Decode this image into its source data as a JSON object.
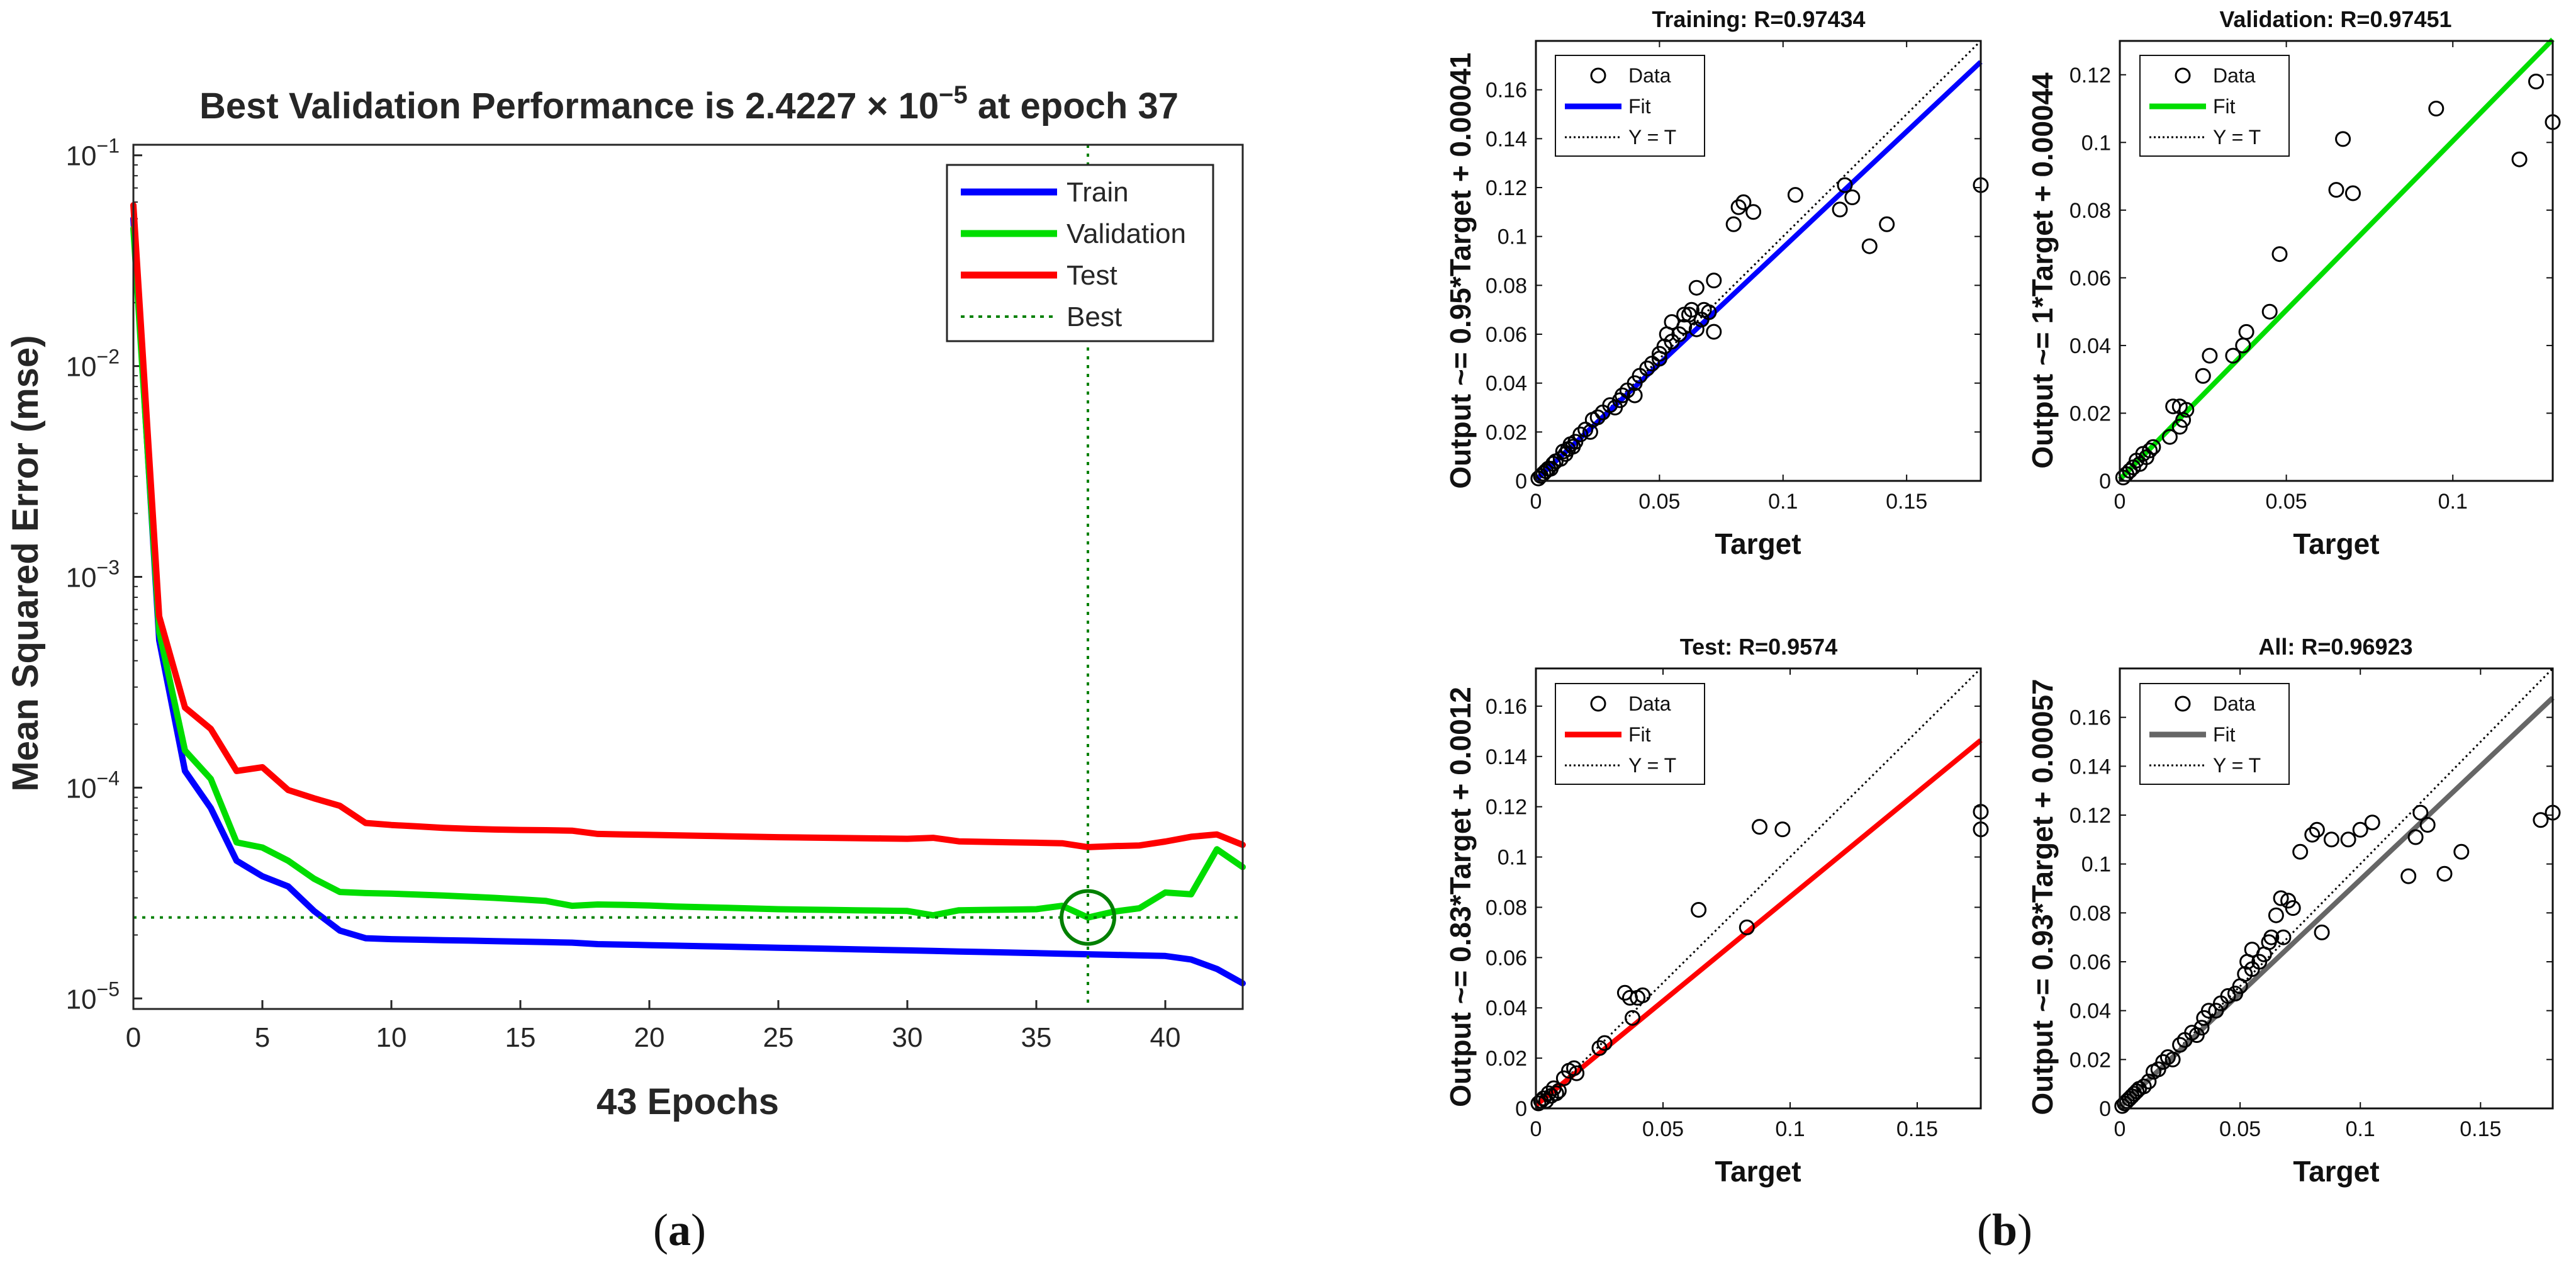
{
  "panel_labels": {
    "a_open": "(",
    "a_letter": "a",
    "a_close": ")",
    "b_open": "(",
    "b_letter": "b",
    "b_close": ")"
  },
  "colors": {
    "train": "#0000ff",
    "validation": "#00dd00",
    "test": "#ff0000",
    "best": "#008000",
    "all": "#666666",
    "data": "#000000"
  },
  "chart_data": [
    {
      "id": "performance",
      "type": "line",
      "title_prefix": "Best Validation Performance is 2.4227 × 10",
      "title_exp": "−5",
      "title_suffix": " at epoch 37",
      "xlabel": "43 Epochs",
      "ylabel": "Mean Squared Error  (mse)",
      "xlim": [
        0,
        43
      ],
      "ylim_log10": [
        -5.05,
        -0.95
      ],
      "xticks": [
        0,
        5,
        10,
        15,
        20,
        25,
        30,
        35,
        40
      ],
      "yticks": [
        {
          "base": "10",
          "exp": "−5",
          "log": -5
        },
        {
          "base": "10",
          "exp": "−4",
          "log": -4
        },
        {
          "base": "10",
          "exp": "−3",
          "log": -3
        },
        {
          "base": "10",
          "exp": "−2",
          "log": -2
        },
        {
          "base": "10",
          "exp": "−1",
          "log": -1
        }
      ],
      "legend": [
        "Train",
        "Validation",
        "Test",
        "Best"
      ],
      "best": {
        "epoch": 37,
        "value": 2.4227e-05
      },
      "series": [
        {
          "name": "Train",
          "values": [
            0.05,
            0.0005,
            0.00012,
            8e-05,
            4.5e-05,
            3.8e-05,
            3.4e-05,
            2.6e-05,
            2.1e-05,
            1.93e-05,
            1.91e-05,
            1.9e-05,
            1.89e-05,
            1.88e-05,
            1.87e-05,
            1.86e-05,
            1.85e-05,
            1.84e-05,
            1.81e-05,
            1.8e-05,
            1.79e-05,
            1.78e-05,
            1.77e-05,
            1.76e-05,
            1.75e-05,
            1.74e-05,
            1.73e-05,
            1.72e-05,
            1.71e-05,
            1.7e-05,
            1.69e-05,
            1.68e-05,
            1.67e-05,
            1.66e-05,
            1.65e-05,
            1.64e-05,
            1.63e-05,
            1.62e-05,
            1.61e-05,
            1.6e-05,
            1.59e-05,
            1.53e-05,
            1.38e-05,
            1.18e-05
          ]
        },
        {
          "name": "Validation",
          "values": [
            0.045,
            0.00055,
            0.00015,
            0.00011,
            5.5e-05,
            5.2e-05,
            4.5e-05,
            3.7e-05,
            3.2e-05,
            3.16e-05,
            3.14e-05,
            3.11e-05,
            3.08e-05,
            3.04e-05,
            3e-05,
            2.95e-05,
            2.9e-05,
            2.75e-05,
            2.79e-05,
            2.78e-05,
            2.76e-05,
            2.73e-05,
            2.71e-05,
            2.69e-05,
            2.67e-05,
            2.65e-05,
            2.64e-05,
            2.63e-05,
            2.62e-05,
            2.61e-05,
            2.6e-05,
            2.48e-05,
            2.62e-05,
            2.63e-05,
            2.64e-05,
            2.65e-05,
            2.75e-05,
            2.42e-05,
            2.58e-05,
            2.68e-05,
            3.18e-05,
            3.12e-05,
            5.1e-05,
            4.2e-05
          ]
        },
        {
          "name": "Test",
          "values": [
            0.058,
            0.00065,
            0.00024,
            0.00019,
            0.00012,
            0.000125,
            9.75e-05,
            8.9e-05,
            8.2e-05,
            6.8e-05,
            6.65e-05,
            6.55e-05,
            6.45e-05,
            6.38e-05,
            6.33e-05,
            6.3e-05,
            6.28e-05,
            6.25e-05,
            6.03e-05,
            6e-05,
            5.97e-05,
            5.94e-05,
            5.91e-05,
            5.88e-05,
            5.85e-05,
            5.82e-05,
            5.8e-05,
            5.78e-05,
            5.76e-05,
            5.74e-05,
            5.72e-05,
            5.78e-05,
            5.56e-05,
            5.53e-05,
            5.5e-05,
            5.48e-05,
            5.45e-05,
            5.22e-05,
            5.28e-05,
            5.32e-05,
            5.55e-05,
            5.85e-05,
            6e-05,
            5.35e-05
          ]
        }
      ]
    },
    {
      "id": "training",
      "type": "scatter",
      "title": "Training: R=0.97434",
      "ylabel": "Output ~= 0.95*Target + 0.00041",
      "xlabel": "Target",
      "fit": {
        "slope": 0.95,
        "intercept": 0.00041,
        "color_key": "train"
      },
      "xlim": [
        0,
        0.18
      ],
      "ylim": [
        0,
        0.18
      ],
      "xticks": [
        0,
        0.05,
        0.1,
        0.15
      ],
      "xtick_labels": [
        "0",
        "0.05",
        "0.1",
        "0.15"
      ],
      "yticks": [
        0,
        0.02,
        0.04,
        0.06,
        0.08,
        0.1,
        0.12,
        0.14,
        0.16
      ],
      "ytick_labels": [
        "0",
        "0.02",
        "0.04",
        "0.06",
        "0.08",
        "0.1",
        "0.12",
        "0.14",
        "0.16"
      ],
      "legend": [
        "Data",
        "Fit",
        "Y = T"
      ],
      "points": [
        [
          0.001,
          0.001
        ],
        [
          0.002,
          0.002
        ],
        [
          0.003,
          0.003
        ],
        [
          0.004,
          0.004
        ],
        [
          0.005,
          0.005
        ],
        [
          0.006,
          0.005
        ],
        [
          0.007,
          0.007
        ],
        [
          0.008,
          0.008
        ],
        [
          0.01,
          0.009
        ],
        [
          0.011,
          0.012
        ],
        [
          0.012,
          0.011
        ],
        [
          0.013,
          0.013
        ],
        [
          0.014,
          0.015
        ],
        [
          0.015,
          0.014
        ],
        [
          0.016,
          0.016
        ],
        [
          0.018,
          0.019
        ],
        [
          0.02,
          0.021
        ],
        [
          0.022,
          0.02
        ],
        [
          0.023,
          0.025
        ],
        [
          0.025,
          0.026
        ],
        [
          0.027,
          0.028
        ],
        [
          0.03,
          0.031
        ],
        [
          0.032,
          0.03
        ],
        [
          0.034,
          0.033
        ],
        [
          0.035,
          0.035
        ],
        [
          0.037,
          0.037
        ],
        [
          0.04,
          0.04
        ],
        [
          0.04,
          0.035
        ],
        [
          0.042,
          0.043
        ],
        [
          0.045,
          0.046
        ],
        [
          0.047,
          0.048
        ],
        [
          0.05,
          0.05
        ],
        [
          0.05,
          0.052
        ],
        [
          0.052,
          0.055
        ],
        [
          0.053,
          0.06
        ],
        [
          0.055,
          0.057
        ],
        [
          0.055,
          0.065
        ],
        [
          0.058,
          0.06
        ],
        [
          0.06,
          0.063
        ],
        [
          0.06,
          0.068
        ],
        [
          0.062,
          0.068
        ],
        [
          0.063,
          0.07
        ],
        [
          0.065,
          0.079
        ],
        [
          0.065,
          0.062
        ],
        [
          0.067,
          0.066
        ],
        [
          0.068,
          0.07
        ],
        [
          0.07,
          0.069
        ],
        [
          0.072,
          0.082
        ],
        [
          0.072,
          0.061
        ],
        [
          0.08,
          0.105
        ],
        [
          0.082,
          0.112
        ],
        [
          0.084,
          0.114
        ],
        [
          0.088,
          0.11
        ],
        [
          0.105,
          0.117
        ],
        [
          0.123,
          0.111
        ],
        [
          0.125,
          0.121
        ],
        [
          0.128,
          0.116
        ],
        [
          0.135,
          0.096
        ],
        [
          0.142,
          0.105
        ],
        [
          0.18,
          0.121
        ]
      ]
    },
    {
      "id": "validation",
      "type": "scatter",
      "title": "Validation: R=0.97451",
      "ylabel": "Output ~= 1*Target + 0.00044",
      "xlabel": "Target",
      "fit": {
        "slope": 1.0,
        "intercept": 0.00044,
        "color_key": "validation"
      },
      "xlim": [
        0,
        0.13
      ],
      "ylim": [
        0,
        0.13
      ],
      "xticks": [
        0,
        0.05,
        0.1
      ],
      "xtick_labels": [
        "0",
        "0.05",
        "0.1"
      ],
      "yticks": [
        0,
        0.02,
        0.04,
        0.06,
        0.08,
        0.1,
        0.12
      ],
      "ytick_labels": [
        "0",
        "0.02",
        "0.04",
        "0.06",
        "0.08",
        "0.1",
        "0.12"
      ],
      "legend": [
        "Data",
        "Fit",
        "Y = T"
      ],
      "points": [
        [
          0.001,
          0.001
        ],
        [
          0.002,
          0.002
        ],
        [
          0.003,
          0.003
        ],
        [
          0.004,
          0.004
        ],
        [
          0.005,
          0.006
        ],
        [
          0.006,
          0.005
        ],
        [
          0.007,
          0.008
        ],
        [
          0.008,
          0.007
        ],
        [
          0.009,
          0.009
        ],
        [
          0.01,
          0.01
        ],
        [
          0.015,
          0.013
        ],
        [
          0.016,
          0.022
        ],
        [
          0.018,
          0.022
        ],
        [
          0.018,
          0.016
        ],
        [
          0.019,
          0.018
        ],
        [
          0.02,
          0.021
        ],
        [
          0.025,
          0.031
        ],
        [
          0.027,
          0.037
        ],
        [
          0.034,
          0.037
        ],
        [
          0.037,
          0.04
        ],
        [
          0.038,
          0.044
        ],
        [
          0.045,
          0.05
        ],
        [
          0.048,
          0.067
        ],
        [
          0.065,
          0.086
        ],
        [
          0.067,
          0.101
        ],
        [
          0.07,
          0.085
        ],
        [
          0.095,
          0.11
        ],
        [
          0.12,
          0.095
        ],
        [
          0.125,
          0.118
        ],
        [
          0.13,
          0.106
        ]
      ]
    },
    {
      "id": "test",
      "type": "scatter",
      "title": "Test: R=0.9574",
      "ylabel": "Output ~= 0.83*Target + 0.0012",
      "xlabel": "Target",
      "fit": {
        "slope": 0.83,
        "intercept": 0.0012,
        "color_key": "test"
      },
      "xlim": [
        0,
        0.175
      ],
      "ylim": [
        0,
        0.175
      ],
      "xticks": [
        0,
        0.05,
        0.1,
        0.15
      ],
      "xtick_labels": [
        "0",
        "0.05",
        "0.1",
        "0.15"
      ],
      "yticks": [
        0,
        0.02,
        0.04,
        0.06,
        0.08,
        0.1,
        0.12,
        0.14,
        0.16
      ],
      "ytick_labels": [
        "0",
        "0.02",
        "0.04",
        "0.06",
        "0.08",
        "0.1",
        "0.12",
        "0.14",
        "0.16"
      ],
      "legend": [
        "Data",
        "Fit",
        "Y = T"
      ],
      "points": [
        [
          0.001,
          0.002
        ],
        [
          0.002,
          0.003
        ],
        [
          0.003,
          0.004
        ],
        [
          0.004,
          0.003
        ],
        [
          0.005,
          0.006
        ],
        [
          0.006,
          0.005
        ],
        [
          0.007,
          0.008
        ],
        [
          0.008,
          0.006
        ],
        [
          0.009,
          0.007
        ],
        [
          0.011,
          0.012
        ],
        [
          0.013,
          0.015
        ],
        [
          0.015,
          0.016
        ],
        [
          0.016,
          0.014
        ],
        [
          0.025,
          0.024
        ],
        [
          0.027,
          0.026
        ],
        [
          0.035,
          0.046
        ],
        [
          0.037,
          0.044
        ],
        [
          0.038,
          0.036
        ],
        [
          0.04,
          0.044
        ],
        [
          0.042,
          0.045
        ],
        [
          0.064,
          0.079
        ],
        [
          0.083,
          0.072
        ],
        [
          0.088,
          0.112
        ],
        [
          0.097,
          0.111
        ],
        [
          0.175,
          0.118
        ],
        [
          0.175,
          0.111
        ]
      ]
    },
    {
      "id": "all",
      "type": "scatter",
      "title": "All: R=0.96923",
      "ylabel": "Output ~= 0.93*Target + 0.00057",
      "xlabel": "Target",
      "fit": {
        "slope": 0.93,
        "intercept": 0.00057,
        "color_key": "all"
      },
      "xlim": [
        0,
        0.18
      ],
      "ylim": [
        0,
        0.18
      ],
      "xticks": [
        0,
        0.05,
        0.1,
        0.15
      ],
      "xtick_labels": [
        "0",
        "0.05",
        "0.1",
        "0.15"
      ],
      "yticks": [
        0,
        0.02,
        0.04,
        0.06,
        0.08,
        0.1,
        0.12,
        0.14,
        0.16
      ],
      "ytick_labels": [
        "0",
        "0.02",
        "0.04",
        "0.06",
        "0.08",
        "0.1",
        "0.12",
        "0.14",
        "0.16"
      ],
      "legend": [
        "Data",
        "Fit",
        "Y = T"
      ],
      "points": [
        [
          0.001,
          0.001
        ],
        [
          0.002,
          0.002
        ],
        [
          0.003,
          0.003
        ],
        [
          0.004,
          0.004
        ],
        [
          0.005,
          0.005
        ],
        [
          0.006,
          0.006
        ],
        [
          0.007,
          0.007
        ],
        [
          0.008,
          0.008
        ],
        [
          0.01,
          0.009
        ],
        [
          0.012,
          0.011
        ],
        [
          0.014,
          0.015
        ],
        [
          0.016,
          0.016
        ],
        [
          0.018,
          0.019
        ],
        [
          0.02,
          0.021
        ],
        [
          0.022,
          0.02
        ],
        [
          0.025,
          0.026
        ],
        [
          0.027,
          0.028
        ],
        [
          0.03,
          0.031
        ],
        [
          0.032,
          0.03
        ],
        [
          0.034,
          0.033
        ],
        [
          0.035,
          0.037
        ],
        [
          0.037,
          0.04
        ],
        [
          0.04,
          0.04
        ],
        [
          0.042,
          0.043
        ],
        [
          0.045,
          0.046
        ],
        [
          0.048,
          0.047
        ],
        [
          0.05,
          0.05
        ],
        [
          0.052,
          0.055
        ],
        [
          0.053,
          0.06
        ],
        [
          0.055,
          0.057
        ],
        [
          0.055,
          0.065
        ],
        [
          0.058,
          0.06
        ],
        [
          0.06,
          0.063
        ],
        [
          0.062,
          0.068
        ],
        [
          0.063,
          0.07
        ],
        [
          0.065,
          0.079
        ],
        [
          0.067,
          0.086
        ],
        [
          0.068,
          0.07
        ],
        [
          0.07,
          0.085
        ],
        [
          0.072,
          0.082
        ],
        [
          0.075,
          0.105
        ],
        [
          0.08,
          0.112
        ],
        [
          0.082,
          0.114
        ],
        [
          0.084,
          0.072
        ],
        [
          0.088,
          0.11
        ],
        [
          0.095,
          0.11
        ],
        [
          0.1,
          0.114
        ],
        [
          0.105,
          0.117
        ],
        [
          0.12,
          0.095
        ],
        [
          0.123,
          0.111
        ],
        [
          0.125,
          0.121
        ],
        [
          0.128,
          0.116
        ],
        [
          0.135,
          0.096
        ],
        [
          0.142,
          0.105
        ],
        [
          0.175,
          0.118
        ],
        [
          0.18,
          0.121
        ]
      ]
    }
  ]
}
